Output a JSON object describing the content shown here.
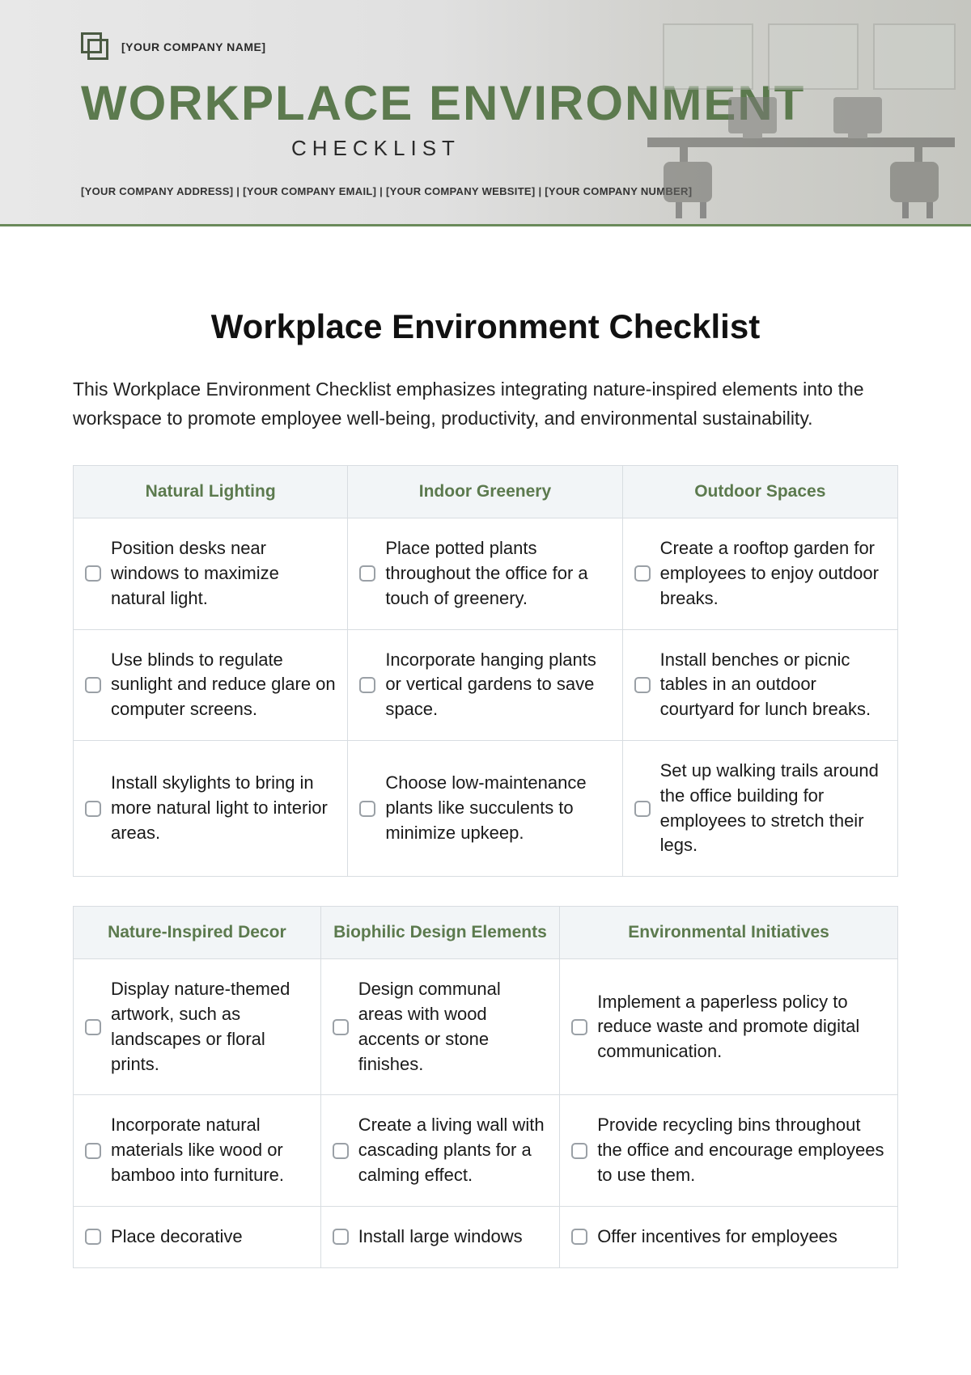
{
  "colors": {
    "accent": "#5c7a4e",
    "header_bg": "#f2f5f7",
    "border": "#d8dde1",
    "text": "#1a1a1a",
    "checkbox_border": "#9aa0a6"
  },
  "banner": {
    "company_name": "[YOUR COMPANY NAME]",
    "title": "WORKPLACE ENVIRONMENT",
    "subtitle": "CHECKLIST",
    "meta": "[YOUR COMPANY ADDRESS]   |   [YOUR COMPANY EMAIL]   |   [YOUR COMPANY WEBSITE]   |   [YOUR COMPANY NUMBER]"
  },
  "page": {
    "title": "Workplace Environment Checklist",
    "intro": "This Workplace Environment Checklist emphasizes integrating nature-inspired elements into the workspace to promote employee well-being, productivity, and environmental sustainability."
  },
  "tables": [
    {
      "headers": [
        "Natural Lighting",
        "Indoor Greenery",
        "Outdoor Spaces"
      ],
      "col_widths": [
        "33.3%",
        "33.3%",
        "33.4%"
      ],
      "rows": [
        [
          "Position desks near windows to maximize natural light.",
          "Place potted plants throughout the office for a touch of greenery.",
          "Create a rooftop garden for employees to enjoy outdoor breaks."
        ],
        [
          "Use blinds to regulate sunlight and reduce glare on computer screens.",
          "Incorporate hanging plants or vertical gardens to save space.",
          "Install benches or picnic tables in an outdoor courtyard for lunch breaks."
        ],
        [
          "Install skylights to bring in more natural light to interior areas.",
          "Choose low-maintenance plants like succulents to minimize upkeep.",
          "Set up walking trails around the office building for employees to stretch their legs."
        ]
      ]
    },
    {
      "headers": [
        "Nature-Inspired Decor",
        "Biophilic Design Elements",
        "Environmental Initiatives"
      ],
      "col_widths": [
        "30%",
        "29%",
        "41%"
      ],
      "rows": [
        [
          "Display nature-themed artwork, such as landscapes or floral prints.",
          "Design communal areas with wood accents or stone finishes.",
          "Implement a paperless policy to reduce waste and promote digital communication."
        ],
        [
          "Incorporate natural materials like wood or bamboo into furniture.",
          "Create a living wall with cascading plants for a calming effect.",
          "Provide recycling bins throughout the office and encourage employees to use them."
        ],
        [
          "Place decorative",
          "Install large windows",
          "Offer incentives for employees"
        ]
      ]
    }
  ]
}
